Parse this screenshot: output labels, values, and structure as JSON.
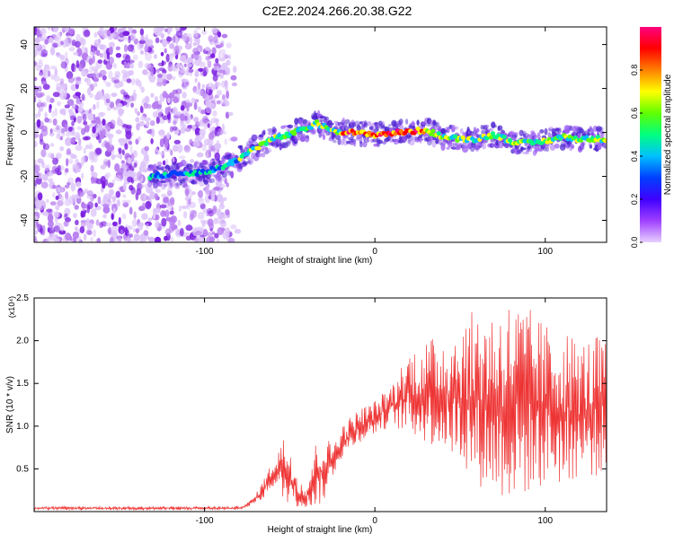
{
  "figure_title": "C2E2.2024.266.20.38.G22",
  "chart_data": [
    {
      "type": "heatmap",
      "xlabel": "Height of straight line (km)",
      "ylabel": "Frequency (Hz)",
      "xlim": [
        -200,
        136
      ],
      "ylim": [
        -50,
        48
      ],
      "xticks": [
        -100,
        0,
        100
      ],
      "xtick_labels": [
        "-100",
        "0",
        "100"
      ],
      "yticks": [
        -40,
        -20,
        0,
        20,
        40
      ],
      "ytick_labels": [
        "-40",
        "-20",
        "0",
        "20",
        "40"
      ],
      "colorbar": {
        "label": "Normalized spectral amplitude",
        "range": [
          0,
          1
        ],
        "ticks": [
          0,
          0.2,
          0.4,
          0.6,
          0.8
        ],
        "tick_labels": [
          "0.0",
          "0.2",
          "0.4",
          "0.6",
          "0.8"
        ],
        "colors": [
          "#e8d0ff",
          "#a040ff",
          "#4000ff",
          "#0040ff",
          "#00c0ff",
          "#00ff80",
          "#60ff00",
          "#ffff00",
          "#ff8000",
          "#ff0000",
          "#ff0080"
        ]
      },
      "ridge": {
        "x": [
          -132,
          -120,
          -100,
          -90,
          -80,
          -70,
          -60,
          -50,
          -40,
          -34,
          -25,
          -15,
          0,
          15,
          30,
          40,
          50,
          60,
          70,
          80,
          90,
          100,
          110,
          120,
          136
        ],
        "y": [
          -20,
          -19,
          -18,
          -16,
          -12,
          -7,
          -3,
          -1,
          2,
          4,
          1,
          0,
          -1,
          0,
          1,
          -2,
          -3,
          -3,
          -1,
          -4,
          -5,
          -4,
          -2,
          -3,
          -3
        ]
      },
      "noise_region_x": [
        -200,
        -80
      ]
    },
    {
      "type": "line",
      "xlabel": "Height of straight line (km)",
      "ylabel": "SNR (10 * v/v)",
      "y_multiplier": "(x10⁴)",
      "xlim": [
        -200,
        136
      ],
      "ylim": [
        0,
        2.5
      ],
      "xticks": [
        -100,
        0,
        100
      ],
      "xtick_labels": [
        "-100",
        "0",
        "100"
      ],
      "yticks": [
        0.5,
        1.0,
        1.5,
        2.0,
        2.5
      ],
      "ytick_labels": [
        "0.5",
        "1.0",
        "1.5",
        "2.0",
        "2.5"
      ],
      "color": "#ee3333",
      "envelope": {
        "x": [
          -200,
          -80,
          -75,
          -70,
          -65,
          -60,
          -55,
          -50,
          -45,
          -40,
          -35,
          -30,
          -25,
          -20,
          -10,
          0,
          10,
          20,
          30,
          40,
          50,
          60,
          70,
          80,
          90,
          100,
          110,
          120,
          136
        ],
        "low": [
          0.02,
          0.02,
          0.05,
          0.1,
          0.15,
          0.3,
          0.1,
          0.1,
          0.05,
          0.05,
          0.05,
          0.1,
          0.4,
          0.6,
          0.8,
          0.9,
          1.0,
          0.9,
          0.8,
          0.7,
          0.6,
          0.3,
          0.2,
          0.1,
          0.2,
          0.3,
          0.3,
          0.4,
          0.4
        ],
        "high": [
          0.06,
          0.06,
          0.1,
          0.2,
          0.4,
          0.6,
          0.9,
          0.8,
          0.4,
          0.3,
          0.8,
          0.9,
          0.8,
          1.0,
          1.2,
          1.3,
          1.5,
          1.9,
          2.0,
          2.1,
          2.2,
          2.4,
          2.4,
          2.5,
          2.4,
          2.2,
          2.2,
          2.0,
          2.1
        ]
      }
    }
  ]
}
